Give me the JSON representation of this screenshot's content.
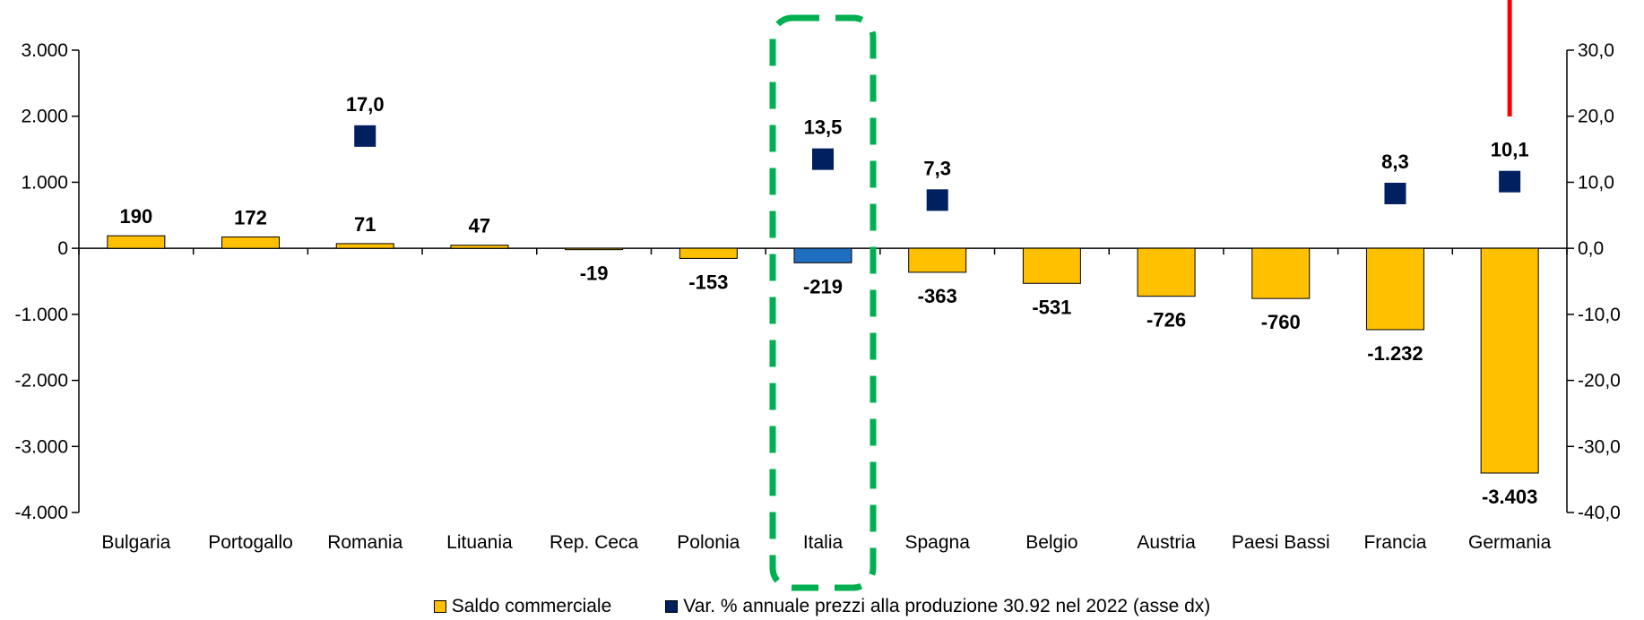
{
  "chart_data": {
    "type": "bar",
    "categories": [
      "Bulgaria",
      "Portogallo",
      "Romania",
      "Lituania",
      "Rep. Ceca",
      "Polonia",
      "Italia",
      "Spagna",
      "Belgio",
      "Austria",
      "Paesi Bassi",
      "Francia",
      "Germania"
    ],
    "series": [
      {
        "name": "Saldo commerciale",
        "axis": "left",
        "type": "bar",
        "values": [
          190,
          172,
          71,
          47,
          -19,
          -153,
          -219,
          -363,
          -531,
          -726,
          -760,
          -1232,
          -3403
        ],
        "labels": [
          "190",
          "172",
          "71",
          "47",
          "-19",
          "-153",
          "-219",
          "-363",
          "-531",
          "-726",
          "-760",
          "-1.232",
          "-3.403"
        ],
        "color": "#FFC000",
        "highlight_color": "#1F6FC0",
        "highlight_index": 6
      },
      {
        "name": "Var. % annuale prezzi alla produzione 30.92 nel 2022 (asse dx)",
        "axis": "right",
        "type": "scatter",
        "values": [
          null,
          null,
          17.0,
          null,
          null,
          null,
          13.5,
          7.3,
          null,
          null,
          null,
          8.3,
          10.1
        ],
        "labels": [
          "",
          "",
          "17,0",
          "",
          "",
          "",
          "13,5",
          "7,3",
          "",
          "",
          "",
          "8,3",
          "10,1"
        ],
        "color": "#002060"
      }
    ],
    "y_left": {
      "min": -4000,
      "max": 3000,
      "ticks": [
        3000,
        2000,
        1000,
        0,
        -1000,
        -2000,
        -3000,
        -4000
      ],
      "tick_labels": [
        "3.000",
        "2.000",
        "1.000",
        "0",
        "-1.000",
        "-2.000",
        "-3.000",
        "-4.000"
      ]
    },
    "y_right": {
      "min": -40,
      "max": 30,
      "ticks": [
        30,
        20,
        10,
        0,
        -10,
        -20,
        -30,
        -40
      ],
      "tick_labels": [
        "30,0",
        "20,0",
        "10,0",
        "0,0",
        "-10,0",
        "-20,0",
        "-30,0",
        "-40,0"
      ]
    },
    "annotations": {
      "highlight_box": {
        "category": "Italia",
        "style": "dashed",
        "color": "#00B050"
      },
      "red_line": {
        "category": "Germania",
        "color": "#FF0000"
      }
    },
    "legend": {
      "placement": "bottom",
      "items": [
        {
          "label": "Saldo commerciale",
          "color": "#FFC000",
          "shape": "square"
        },
        {
          "label": "Var. % annuale prezzi alla produzione 30.92 nel 2022 (asse dx)",
          "color": "#002060",
          "shape": "square"
        }
      ]
    },
    "grid": false
  }
}
